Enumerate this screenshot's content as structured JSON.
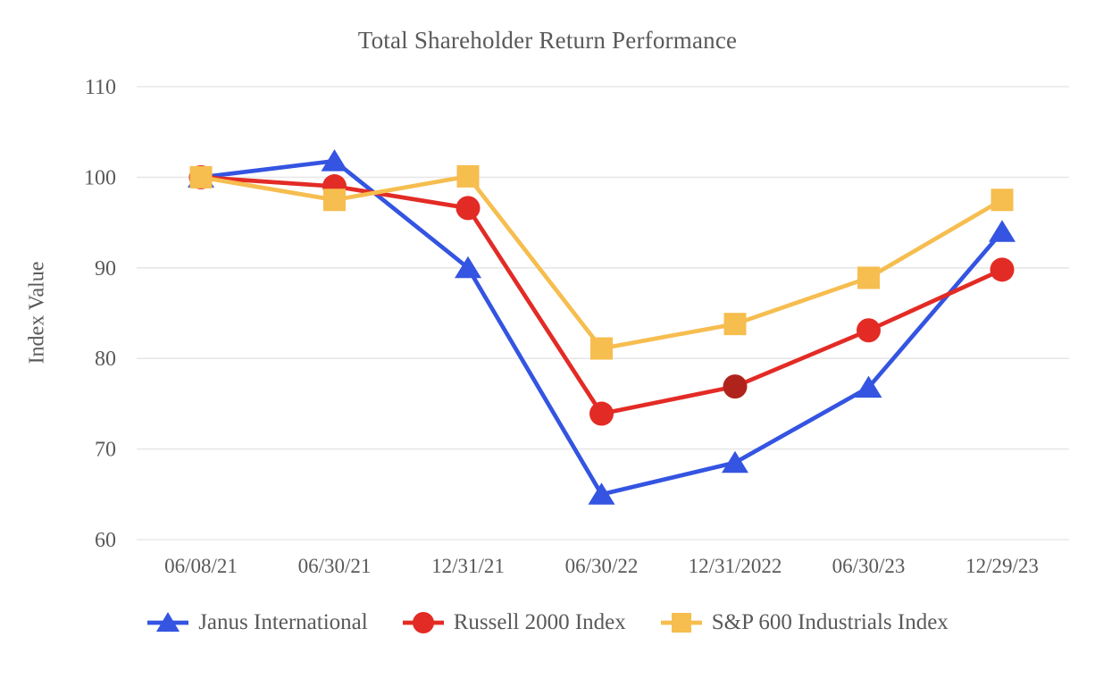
{
  "title": "Total Shareholder Return Performance",
  "y_axis_title": "Index Value",
  "colors": {
    "background": "#ffffff",
    "gridline": "#e8e8e8",
    "text": "#595959",
    "janus_blue": "#3454e1",
    "russell_red": "#e32b25",
    "russell_dark_marker": "#b0231d",
    "sp600_yellow": "#f6bd4f"
  },
  "chart_data": {
    "type": "line",
    "title": "Total Shareholder Return Performance",
    "xlabel": "",
    "ylabel": "Index Value",
    "categories": [
      "06/08/21",
      "06/30/21",
      "12/31/21",
      "06/30/22",
      "12/31/2022",
      "06/30/23",
      "12/29/23"
    ],
    "ylim": [
      60,
      110
    ],
    "yticks": [
      60,
      70,
      80,
      90,
      100,
      110
    ],
    "grid": true,
    "legend_position": "bottom",
    "series": [
      {
        "name": "Janus International",
        "color": "#3454e1",
        "marker": "triangle-up",
        "values": [
          100,
          101.8,
          90,
          65,
          68.5,
          76.8,
          94
        ]
      },
      {
        "name": "Russell 2000 Index",
        "color": "#e32b25",
        "marker": "circle",
        "values": [
          100,
          99,
          96.6,
          73.9,
          76.9,
          83.1,
          89.8
        ],
        "marker_fills": [
          null,
          null,
          null,
          null,
          "#b0231d",
          null,
          null
        ]
      },
      {
        "name": "S&P 600 Industrials Index",
        "color": "#f6bd4f",
        "marker": "square",
        "values": [
          100,
          97.5,
          100.1,
          81.1,
          83.8,
          88.9,
          97.5
        ]
      }
    ]
  }
}
